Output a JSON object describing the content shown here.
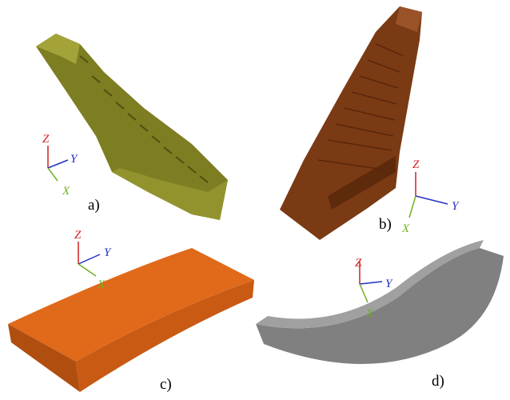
{
  "panels": [
    {
      "label": "a)",
      "axes": {
        "z": "Z",
        "y": "Y",
        "x": "X"
      }
    },
    {
      "label": "b)",
      "axes": {
        "z": "Z",
        "y": "Y",
        "x": "X"
      }
    },
    {
      "label": "c)",
      "axes": {
        "z": "Z",
        "y": "Y",
        "x": "X"
      }
    },
    {
      "label": "d)",
      "axes": {
        "z": "Z",
        "y": "Y",
        "x": "X"
      }
    }
  ]
}
